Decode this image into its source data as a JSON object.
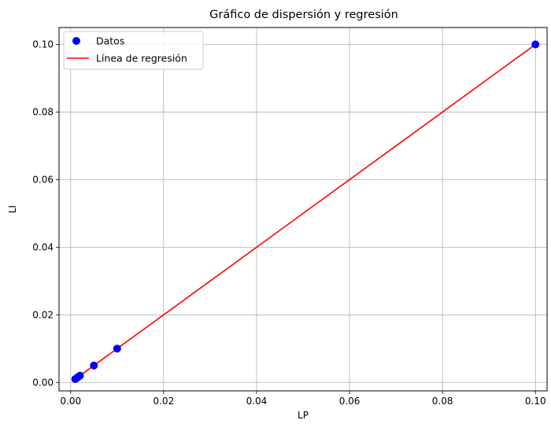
{
  "chart_data": {
    "type": "scatter",
    "title": "Gráfico de dispersión y regresión",
    "xlabel": "LP",
    "ylabel": "LI",
    "xlim": [
      -0.0025,
      0.1025
    ],
    "ylim": [
      -0.0025,
      0.105
    ],
    "xticks": [
      0.0,
      0.02,
      0.04,
      0.06,
      0.08,
      0.1
    ],
    "xtick_labels": [
      "0.00",
      "0.02",
      "0.04",
      "0.06",
      "0.08",
      "0.10"
    ],
    "yticks": [
      0.0,
      0.02,
      0.04,
      0.06,
      0.08,
      0.1
    ],
    "ytick_labels": [
      "0.00",
      "0.02",
      "0.04",
      "0.06",
      "0.08",
      "0.10"
    ],
    "grid": true,
    "legend_position": "top-left",
    "series": [
      {
        "name": "Datos",
        "kind": "scatter",
        "color": "#0000ff",
        "points": [
          {
            "x": 0.001,
            "y": 0.001
          },
          {
            "x": 0.0015,
            "y": 0.0015
          },
          {
            "x": 0.002,
            "y": 0.002
          },
          {
            "x": 0.005,
            "y": 0.005
          },
          {
            "x": 0.01,
            "y": 0.01
          },
          {
            "x": 0.1,
            "y": 0.1
          }
        ]
      },
      {
        "name": "Línea de regresión",
        "kind": "line",
        "color": "#ff0000",
        "points": [
          {
            "x": 0.001,
            "y": 0.001
          },
          {
            "x": 0.1,
            "y": 0.1
          }
        ]
      }
    ]
  }
}
